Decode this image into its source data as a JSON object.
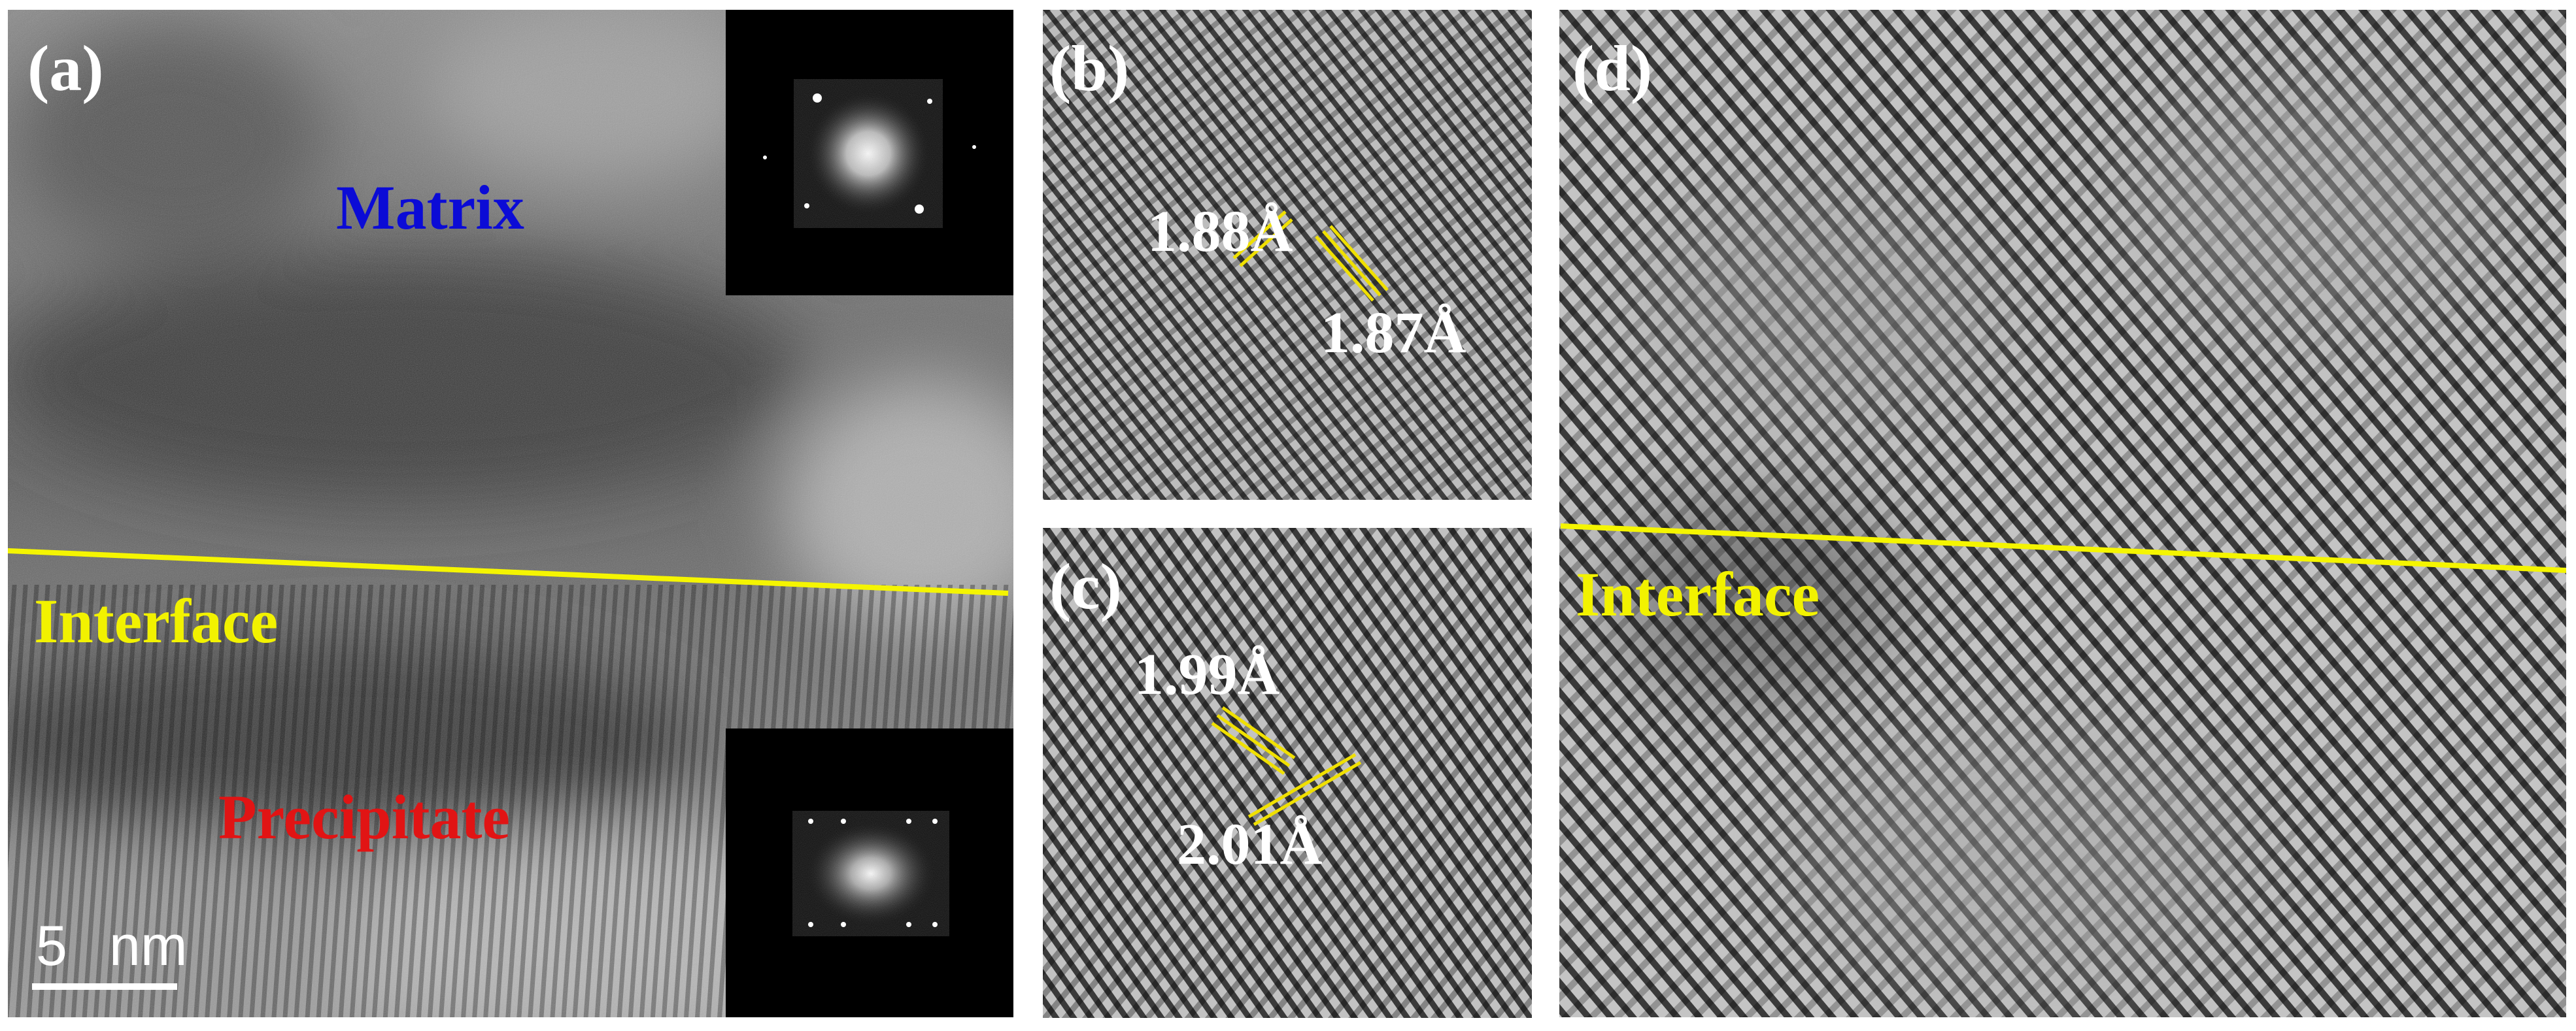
{
  "panel_a": {
    "letter": "(a)",
    "matrix_label": "Matrix",
    "interface_label": "Interface",
    "precipitate_label": "Precipitate",
    "scale_value": "5",
    "scale_unit": "nm"
  },
  "panel_b": {
    "letter": "(b)",
    "spacing_1": "1.88Å",
    "spacing_2": "1.87Å"
  },
  "panel_c": {
    "letter": "(c)",
    "spacing_1": "1.99Å",
    "spacing_2": "2.01Å"
  },
  "panel_d": {
    "letter": "(d)",
    "interface_label": "Interface"
  },
  "colors": {
    "matrix_label": "#0b0bd6",
    "interface_label": "#f2f200",
    "precipitate_label": "#e11414",
    "interface_line": "#f5f500",
    "measure_marker": "#f0e000",
    "panel_letter": "#ffffff"
  }
}
